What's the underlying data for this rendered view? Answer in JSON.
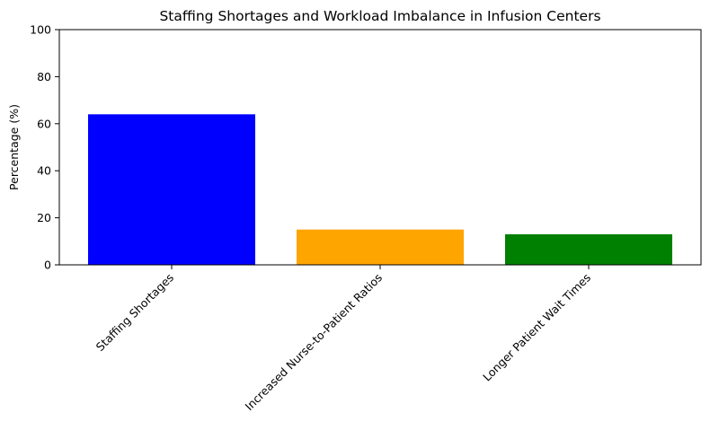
{
  "chart_data": {
    "type": "bar",
    "title": "Staffing Shortages and Workload Imbalance in Infusion Centers",
    "xlabel": "",
    "ylabel": "Percentage (%)",
    "categories": [
      "Staffing Shortages",
      "Increased Nurse-to-Patient Ratios",
      "Longer Patient Wait Times"
    ],
    "values": [
      64,
      15,
      13
    ],
    "colors": [
      "#0000ff",
      "#ffa500",
      "#008000"
    ],
    "ylim": [
      0,
      100
    ],
    "yticks": [
      0,
      20,
      40,
      60,
      80,
      100
    ],
    "grid": false,
    "legend": "none"
  }
}
